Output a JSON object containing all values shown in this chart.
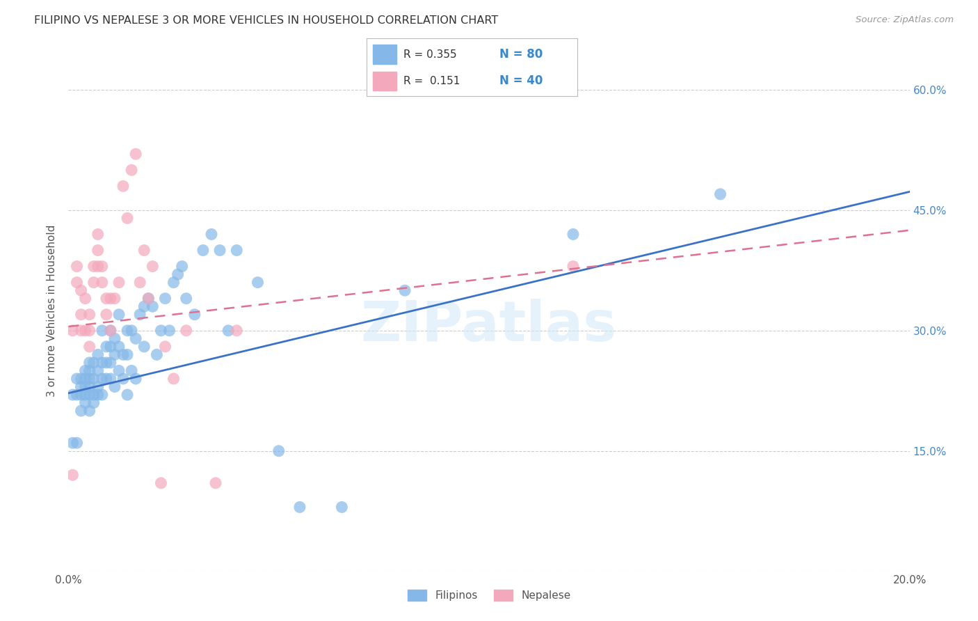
{
  "title": "FILIPINO VS NEPALESE 3 OR MORE VEHICLES IN HOUSEHOLD CORRELATION CHART",
  "source": "Source: ZipAtlas.com",
  "ylabel": "3 or more Vehicles in Household",
  "xlim": [
    0.0,
    0.2
  ],
  "ylim": [
    0.0,
    0.65
  ],
  "xtick_positions": [
    0.0,
    0.04,
    0.08,
    0.12,
    0.16,
    0.2
  ],
  "xtick_labels": [
    "0.0%",
    "",
    "",
    "",
    "",
    "20.0%"
  ],
  "ytick_positions": [
    0.0,
    0.15,
    0.3,
    0.45,
    0.6
  ],
  "ytick_labels_right": [
    "",
    "15.0%",
    "30.0%",
    "45.0%",
    "60.0%"
  ],
  "grid_color": "#cccccc",
  "watermark": "ZIPatlas",
  "legend_R_filipino": "0.355",
  "legend_N_filipino": "80",
  "legend_R_nepalese": "0.151",
  "legend_N_nepalese": "40",
  "filipino_color": "#85b8e8",
  "nepalese_color": "#f4a8bc",
  "filipino_line_color": "#3a72c8",
  "nepalese_line_color": "#e07090",
  "filipino_points_x": [
    0.001,
    0.001,
    0.002,
    0.002,
    0.002,
    0.003,
    0.003,
    0.003,
    0.003,
    0.004,
    0.004,
    0.004,
    0.004,
    0.004,
    0.005,
    0.005,
    0.005,
    0.005,
    0.005,
    0.005,
    0.006,
    0.006,
    0.006,
    0.006,
    0.007,
    0.007,
    0.007,
    0.007,
    0.008,
    0.008,
    0.008,
    0.008,
    0.009,
    0.009,
    0.009,
    0.01,
    0.01,
    0.01,
    0.01,
    0.011,
    0.011,
    0.011,
    0.012,
    0.012,
    0.012,
    0.013,
    0.013,
    0.014,
    0.014,
    0.014,
    0.015,
    0.015,
    0.016,
    0.016,
    0.017,
    0.018,
    0.018,
    0.019,
    0.02,
    0.021,
    0.022,
    0.023,
    0.024,
    0.025,
    0.026,
    0.027,
    0.028,
    0.03,
    0.032,
    0.034,
    0.036,
    0.038,
    0.04,
    0.045,
    0.05,
    0.055,
    0.065,
    0.08,
    0.12,
    0.155
  ],
  "filipino_points_y": [
    0.22,
    0.16,
    0.24,
    0.22,
    0.16,
    0.24,
    0.22,
    0.23,
    0.2,
    0.24,
    0.22,
    0.25,
    0.23,
    0.21,
    0.24,
    0.22,
    0.25,
    0.23,
    0.2,
    0.26,
    0.22,
    0.24,
    0.26,
    0.21,
    0.23,
    0.25,
    0.22,
    0.27,
    0.22,
    0.24,
    0.26,
    0.3,
    0.24,
    0.26,
    0.28,
    0.24,
    0.26,
    0.28,
    0.3,
    0.23,
    0.27,
    0.29,
    0.25,
    0.28,
    0.32,
    0.24,
    0.27,
    0.22,
    0.27,
    0.3,
    0.25,
    0.3,
    0.24,
    0.29,
    0.32,
    0.28,
    0.33,
    0.34,
    0.33,
    0.27,
    0.3,
    0.34,
    0.3,
    0.36,
    0.37,
    0.38,
    0.34,
    0.32,
    0.4,
    0.42,
    0.4,
    0.3,
    0.4,
    0.36,
    0.15,
    0.08,
    0.08,
    0.35,
    0.42,
    0.47
  ],
  "nepalese_points_x": [
    0.001,
    0.001,
    0.002,
    0.002,
    0.003,
    0.003,
    0.003,
    0.004,
    0.004,
    0.005,
    0.005,
    0.005,
    0.006,
    0.006,
    0.007,
    0.007,
    0.007,
    0.008,
    0.008,
    0.009,
    0.009,
    0.01,
    0.01,
    0.011,
    0.012,
    0.013,
    0.014,
    0.015,
    0.016,
    0.017,
    0.018,
    0.019,
    0.02,
    0.022,
    0.023,
    0.025,
    0.028,
    0.035,
    0.04,
    0.12
  ],
  "nepalese_points_y": [
    0.12,
    0.3,
    0.36,
    0.38,
    0.3,
    0.32,
    0.35,
    0.3,
    0.34,
    0.28,
    0.3,
    0.32,
    0.36,
    0.38,
    0.38,
    0.4,
    0.42,
    0.36,
    0.38,
    0.32,
    0.34,
    0.3,
    0.34,
    0.34,
    0.36,
    0.48,
    0.44,
    0.5,
    0.52,
    0.36,
    0.4,
    0.34,
    0.38,
    0.11,
    0.28,
    0.24,
    0.3,
    0.11,
    0.3,
    0.38
  ]
}
